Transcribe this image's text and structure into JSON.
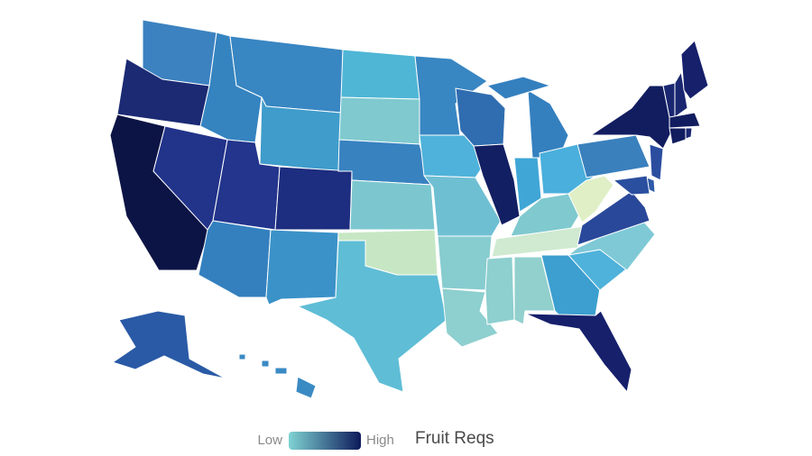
{
  "map": {
    "legend": {
      "low": "Low",
      "high": "High",
      "title": "Fruit Reqs",
      "gradient": [
        "#7fd3d3",
        "#0d1a5a"
      ]
    },
    "region_colors": [
      "#3c82c0",
      "#1b2a73",
      "#0c1445",
      "#22338a",
      "#3584c0",
      "#3886c2",
      "#3f9ccb",
      "#23358c",
      "#1d2d7f",
      "#3480bf",
      "#3b92c8",
      "#4fb6d6",
      "#7fc9cf",
      "#3882c0",
      "#7cc7cf",
      "#c7e7c4",
      "#5fbdd6",
      "#3886c2",
      "#4fb2da",
      "#6fbfd3",
      "#87cccf",
      "#8ecfcf",
      "#2f6db0",
      "#121f63",
      "#3480bf",
      "#3fa6d6",
      "#4aafdc",
      "#7fc9cf",
      "#cfead0",
      "#8ecfcf",
      "#92d0cd",
      "#3c9fcf",
      "#16206b",
      "#4fb2da",
      "#7fc9d6",
      "#29489a",
      "#e0efc6",
      "#3a80bd",
      "#121d60",
      "#1a2770",
      "#1a2770",
      "#16206b",
      "#121d60",
      "#121d60",
      "#1a2770",
      "#2b4da0",
      "#2f5aa8",
      "#2a4f9f",
      "#2a5aa6",
      "#3a8ac4"
    ]
  }
}
